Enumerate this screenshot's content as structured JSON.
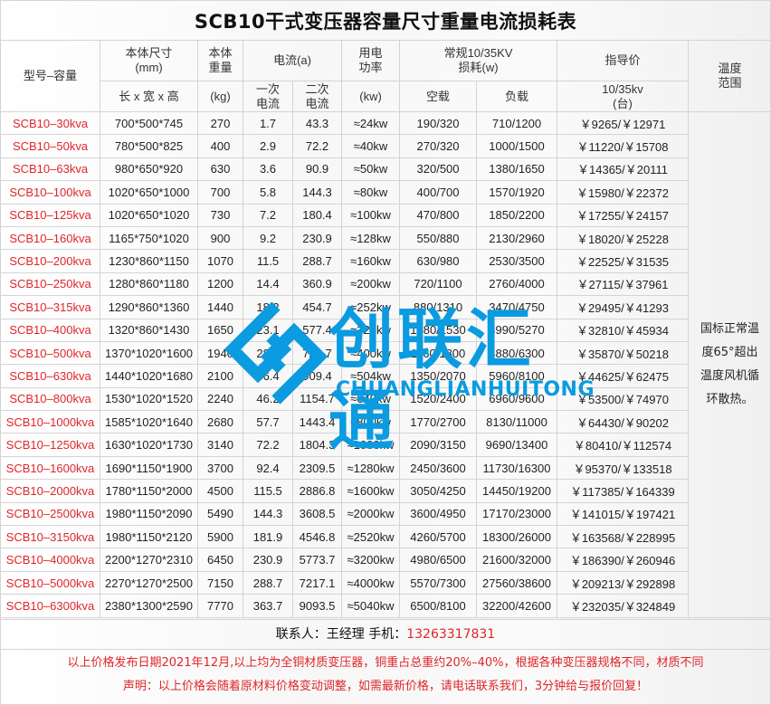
{
  "title": "SCB10干式变压器容量尺寸重量电流损耗表",
  "header": {
    "model": "型号–容量",
    "size_top": "本体尺寸\n(mm)",
    "size_bottom": "长 x 宽 x 高",
    "weight_top": "本体\n重量",
    "weight_bottom": "(kg)",
    "current": "电流(a)",
    "current_primary": "一次\n电流",
    "current_secondary": "二次\n电流",
    "power_top": "用电\n功率",
    "power_bottom": "(kw)",
    "loss_top": "常规10/35KV\n损耗(w)",
    "loss_noload": "空载",
    "loss_load": "负载",
    "price_top": "指导价",
    "price_bottom": "10/35kv\n(台)",
    "temp": "温度\n范围"
  },
  "temp_note": "国标正常温度65°超出温度风机循环散热。",
  "rows": [
    [
      "SCB10–30kva",
      "700*500*745",
      "270",
      "1.7",
      "43.3",
      "≈24kw",
      "190/320",
      "710/1200",
      "￥9265/￥12971"
    ],
    [
      "SCB10–50kva",
      "780*500*825",
      "400",
      "2.9",
      "72.2",
      "≈40kw",
      "270/320",
      "1000/1500",
      "￥11220/￥15708"
    ],
    [
      "SCB10–63kva",
      "980*650*920",
      "630",
      "3.6",
      "90.9",
      "≈50kw",
      "320/500",
      "1380/1650",
      "￥14365/￥20111"
    ],
    [
      "SCB10–100kva",
      "1020*650*1000",
      "700",
      "5.8",
      "144.3",
      "≈80kw",
      "400/700",
      "1570/1920",
      "￥15980/￥22372"
    ],
    [
      "SCB10–125kva",
      "1020*650*1020",
      "730",
      "7.2",
      "180.4",
      "≈100kw",
      "470/800",
      "1850/2200",
      "￥17255/￥24157"
    ],
    [
      "SCB10–160kva",
      "1165*750*1020",
      "900",
      "9.2",
      "230.9",
      "≈128kw",
      "550/880",
      "2130/2960",
      "￥18020/￥25228"
    ],
    [
      "SCB10–200kva",
      "1230*860*1150",
      "1070",
      "11.5",
      "288.7",
      "≈160kw",
      "630/980",
      "2530/3500",
      "￥22525/￥31535"
    ],
    [
      "SCB10–250kva",
      "1280*860*1180",
      "1200",
      "14.4",
      "360.9",
      "≈200kw",
      "720/1100",
      "2760/4000",
      "￥27115/￥37961"
    ],
    [
      "SCB10–315kva",
      "1290*860*1360",
      "1440",
      "18.2",
      "454.7",
      "≈252kw",
      "880/1310",
      "3470/4750",
      "￥29495/￥41293"
    ],
    [
      "SCB10–400kva",
      "1320*860*1430",
      "1650",
      "23.1",
      "577.4",
      "≈320kw",
      "1080/1530",
      "3990/5270",
      "￥32810/￥45934"
    ],
    [
      "SCB10–500kva",
      "1370*1020*1600",
      "1940",
      "28.9",
      "721.7",
      "≈400kw",
      "1160/1800",
      "4880/6300",
      "￥35870/￥50218"
    ],
    [
      "SCB10–630kva",
      "1440*1020*1680",
      "2100",
      "36.4",
      "909.4",
      "≈504kw",
      "1350/2070",
      "5960/8100",
      "￥44625/￥62475"
    ],
    [
      "SCB10–800kva",
      "1530*1020*1520",
      "2240",
      "46.2",
      "1154.7",
      "≈640kw",
      "1520/2400",
      "6960/9600",
      "￥53500/￥74970"
    ],
    [
      "SCB10–1000kva",
      "1585*1020*1640",
      "2680",
      "57.7",
      "1443.4",
      "≈800kw",
      "1770/2700",
      "8130/11000",
      "￥64430/￥90202"
    ],
    [
      "SCB10–1250kva",
      "1630*1020*1730",
      "3140",
      "72.2",
      "1804.3",
      "≈1000kw",
      "2090/3150",
      "9690/13400",
      "￥80410/￥112574"
    ],
    [
      "SCB10–1600kva",
      "1690*1150*1900",
      "3700",
      "92.4",
      "2309.5",
      "≈1280kw",
      "2450/3600",
      "11730/16300",
      "￥95370/￥133518"
    ],
    [
      "SCB10–2000kva",
      "1780*1150*2000",
      "4500",
      "115.5",
      "2886.8",
      "≈1600kw",
      "3050/4250",
      "14450/19200",
      "￥117385/￥164339"
    ],
    [
      "SCB10–2500kva",
      "1980*1150*2090",
      "5490",
      "144.3",
      "3608.5",
      "≈2000kw",
      "3600/4950",
      "17170/23000",
      "￥141015/￥197421"
    ],
    [
      "SCB10–3150kva",
      "1980*1150*2120",
      "5900",
      "181.9",
      "4546.8",
      "≈2520kw",
      "4260/5700",
      "18300/26000",
      "￥163568/￥228995"
    ],
    [
      "SCB10–4000kva",
      "2200*1270*2310",
      "6450",
      "230.9",
      "5773.7",
      "≈3200kw",
      "4980/6500",
      "21600/32000",
      "￥186390/￥260946"
    ],
    [
      "SCB10–5000kva",
      "2270*1270*2500",
      "7150",
      "288.7",
      "7217.1",
      "≈4000kw",
      "5570/7300",
      "27560/38600",
      "￥209213/￥292898"
    ],
    [
      "SCB10–6300kva",
      "2380*1300*2590",
      "7770",
      "363.7",
      "9093.5",
      "≈5040kw",
      "6500/8100",
      "32200/42600",
      "￥232035/￥324849"
    ]
  ],
  "contact": {
    "label": "联系人：王经理  手机：",
    "phone": "13263317831"
  },
  "notes": [
    "以上价格发布日期2021年12月,以上均为全铜材质变压器，铜重占总重约20%–40%，根据各种变压器规格不同，材质不同",
    "声明：以上价格会随着原材料价格变动调整，如需最新价格，请电话联系我们，3分钟给与报价回复！"
  ],
  "watermark": {
    "cn": "创联汇通",
    "en": "CHUANGLIANHUITONG"
  },
  "colors": {
    "accent_red": "#e0262a",
    "watermark_blue": "#0a9be0"
  }
}
